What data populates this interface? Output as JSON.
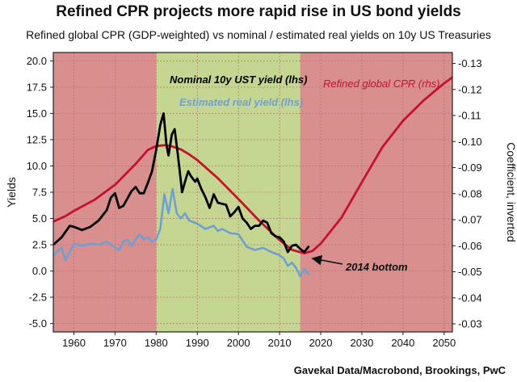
{
  "title": "Refined CPR projects more rapid rise in US bond yields",
  "subtitle": "Refined global CPR (GDP-weighted) vs nominal / estimated real yields on 10y US Treasuries",
  "source": "Gavekal Data/Macrobond, Brookings, PwC",
  "colors": {
    "background_shade": "#d98f8e",
    "band_shade": "#c5d690",
    "nominal": "#000000",
    "real": "#6f9fd3",
    "cpr": "#c8102e"
  },
  "chart_data": {
    "type": "line",
    "ylabel": "Yields",
    "y2label": "Coefficient, inverted",
    "xlim": [
      1955,
      2052
    ],
    "ylim": [
      -5.8,
      20.8
    ],
    "y2lim": [
      -0.0269,
      -0.1342
    ],
    "xticks": [
      "1960",
      "1970",
      "1980",
      "1990",
      "2000",
      "2010",
      "2020",
      "2030",
      "2040",
      "2050"
    ],
    "yticks": [
      "20.0",
      "17.5",
      "15.0",
      "12.5",
      "10.0",
      "7.5",
      "5.0",
      "2.5",
      "0.0",
      "-2.5",
      "-5.0"
    ],
    "y2ticks": [
      "-0.13",
      "-0.12",
      "-0.11",
      "-0.10",
      "-0.09",
      "-0.08",
      "-0.07",
      "-0.06",
      "-0.05",
      "-0.04",
      "-0.03"
    ],
    "shaded_band": {
      "x": [
        1980,
        2015
      ]
    },
    "series": [
      {
        "name": "Nominal 10y UST yield (lhs)",
        "axis": "left",
        "x": [
          1955,
          1957,
          1959,
          1960,
          1962,
          1964,
          1966,
          1968,
          1969,
          1970,
          1971,
          1972,
          1974,
          1975,
          1976,
          1977,
          1978,
          1979,
          1980,
          1981,
          1981.8,
          1982.5,
          1983,
          1983.8,
          1984.5,
          1985.3,
          1986.3,
          1987,
          1987.8,
          1988.5,
          1989.5,
          1990,
          1991,
          1992,
          1993,
          1994,
          1995,
          1996,
          1997,
          1998,
          1999,
          2000,
          2001,
          2002,
          2003,
          2004,
          2005,
          2006,
          2007,
          2008,
          2009,
          2010,
          2011,
          2012,
          2013,
          2014,
          2015,
          2016,
          2017
        ],
        "y": [
          2.5,
          3.2,
          4.3,
          4.2,
          3.9,
          4.2,
          4.8,
          5.8,
          7.0,
          7.4,
          6.0,
          6.2,
          7.6,
          8.0,
          7.4,
          7.4,
          8.4,
          9.5,
          11.5,
          13.9,
          15.0,
          12.0,
          11.0,
          13.0,
          13.5,
          11.0,
          7.5,
          8.5,
          9.5,
          9.0,
          8.5,
          8.8,
          7.8,
          7.0,
          6.0,
          7.3,
          6.5,
          6.4,
          6.3,
          5.2,
          5.6,
          6.1,
          5.0,
          4.6,
          4.0,
          4.3,
          4.3,
          4.8,
          4.6,
          3.6,
          3.3,
          3.2,
          2.8,
          1.8,
          2.4,
          2.5,
          2.1,
          1.8,
          2.3
        ]
      },
      {
        "name": "Estimated real yield (lhs)",
        "axis": "left",
        "x": [
          1955,
          1957,
          1958,
          1960,
          1962,
          1964,
          1966,
          1968,
          1970,
          1971,
          1972,
          1973,
          1974,
          1975,
          1976,
          1977,
          1978,
          1979,
          1980,
          1981,
          1982,
          1983,
          1984,
          1985,
          1986,
          1987,
          1988,
          1990,
          1992,
          1994,
          1995,
          1996,
          1998,
          2000,
          2002,
          2004,
          2006,
          2008,
          2010,
          2011,
          2012,
          2013,
          2014,
          2015,
          2016,
          2017
        ],
        "y": [
          1.5,
          2.2,
          1.0,
          2.6,
          2.4,
          2.6,
          2.5,
          2.8,
          2.2,
          2.0,
          2.8,
          3.0,
          2.4,
          3.0,
          3.5,
          3.0,
          3.2,
          2.8,
          3.0,
          4.0,
          7.3,
          5.5,
          7.8,
          5.5,
          5.0,
          5.5,
          4.8,
          4.5,
          4.0,
          4.3,
          3.8,
          4.0,
          3.6,
          3.5,
          2.3,
          2.0,
          2.2,
          1.8,
          1.5,
          1.2,
          0.5,
          0.8,
          0.3,
          -0.5,
          0.2,
          -0.3
        ]
      },
      {
        "name": "Refined global CPR (rhs)",
        "axis": "right",
        "x": [
          1955,
          1958,
          1960,
          1965,
          1970,
          1975,
          1978,
          1980,
          1982,
          1984,
          1986,
          1988,
          1990,
          1995,
          2000,
          2005,
          2010,
          2013,
          2016,
          2018,
          2020,
          2025,
          2030,
          2035,
          2040,
          2045,
          2050,
          2052
        ],
        "y": [
          -0.0693,
          -0.0714,
          -0.0734,
          -0.0776,
          -0.0834,
          -0.0914,
          -0.0968,
          -0.0983,
          -0.0986,
          -0.0981,
          -0.097,
          -0.0951,
          -0.0929,
          -0.0859,
          -0.0779,
          -0.0697,
          -0.0622,
          -0.0584,
          -0.0571,
          -0.058,
          -0.0608,
          -0.0707,
          -0.0844,
          -0.0979,
          -0.108,
          -0.1158,
          -0.1224,
          -0.1247
        ]
      }
    ],
    "annotations": [
      {
        "text": "2014 bottom",
        "points_to": [
          2016,
          -0.0571
        ]
      }
    ]
  }
}
